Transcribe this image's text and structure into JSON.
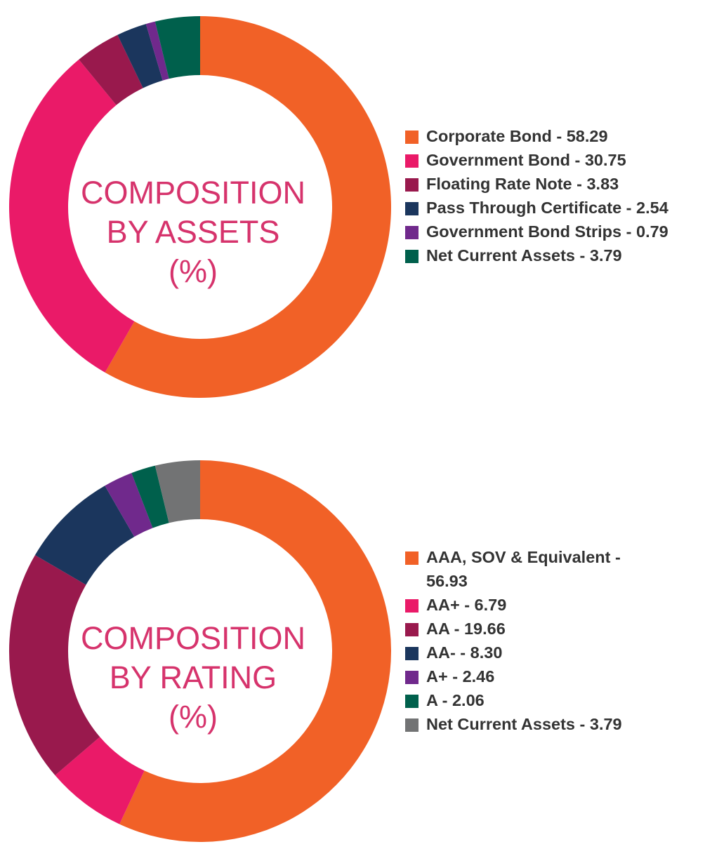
{
  "chart_data": [
    {
      "type": "pie",
      "title": "COMPOSITION BY ASSETS (%)",
      "title_lines": [
        "COMPOSITION",
        "BY ASSETS",
        "(%)"
      ],
      "slices": [
        {
          "label": "Corporate Bond",
          "value": 58.29,
          "legend_text": "Corporate Bond - 58.29",
          "color": "#f16127"
        },
        {
          "label": "Government Bond",
          "value": 30.75,
          "legend_text": "Government Bond - 30.75",
          "color": "#ea1a68"
        },
        {
          "label": "Floating Rate Note",
          "value": 3.83,
          "legend_text": "Floating Rate Note - 3.83",
          "color": "#99194d"
        },
        {
          "label": "Pass Through Certificate",
          "value": 2.54,
          "legend_text": "Pass Through Certificate - 2.54",
          "color": "#1b365d"
        },
        {
          "label": "Government Bond Strips",
          "value": 0.79,
          "legend_text": "Government Bond Strips - 0.79",
          "color": "#70298c"
        },
        {
          "label": "Net Current Assets",
          "value": 3.79,
          "legend_text": "Net Current Assets - 3.79",
          "color": "#00604c"
        }
      ],
      "legend_position": "right"
    },
    {
      "type": "pie",
      "title": "COMPOSITION BY RATING (%)",
      "title_lines": [
        "COMPOSITION",
        "BY RATING",
        "(%)"
      ],
      "slices": [
        {
          "label": "AAA, SOV & Equivalent",
          "value": 56.93,
          "legend_text": "AAA, SOV & Equivalent - 56.93",
          "color": "#f16127"
        },
        {
          "label": "AA+",
          "value": 6.79,
          "legend_text": "AA+ - 6.79",
          "color": "#ea1a68"
        },
        {
          "label": "AA",
          "value": 19.66,
          "legend_text": "AA - 19.66",
          "color": "#99194d"
        },
        {
          "label": "AA-",
          "value": 8.3,
          "legend_text": "AA- - 8.30",
          "color": "#1b365d"
        },
        {
          "label": "A+",
          "value": 2.46,
          "legend_text": "A+ - 2.46",
          "color": "#70298c"
        },
        {
          "label": "A",
          "value": 2.06,
          "legend_text": "A - 2.06",
          "color": "#00604c"
        },
        {
          "label": "Net Current Assets",
          "value": 3.79,
          "legend_text": "Net Current Assets - 3.79",
          "color": "#727374"
        }
      ],
      "legend_position": "right"
    }
  ]
}
